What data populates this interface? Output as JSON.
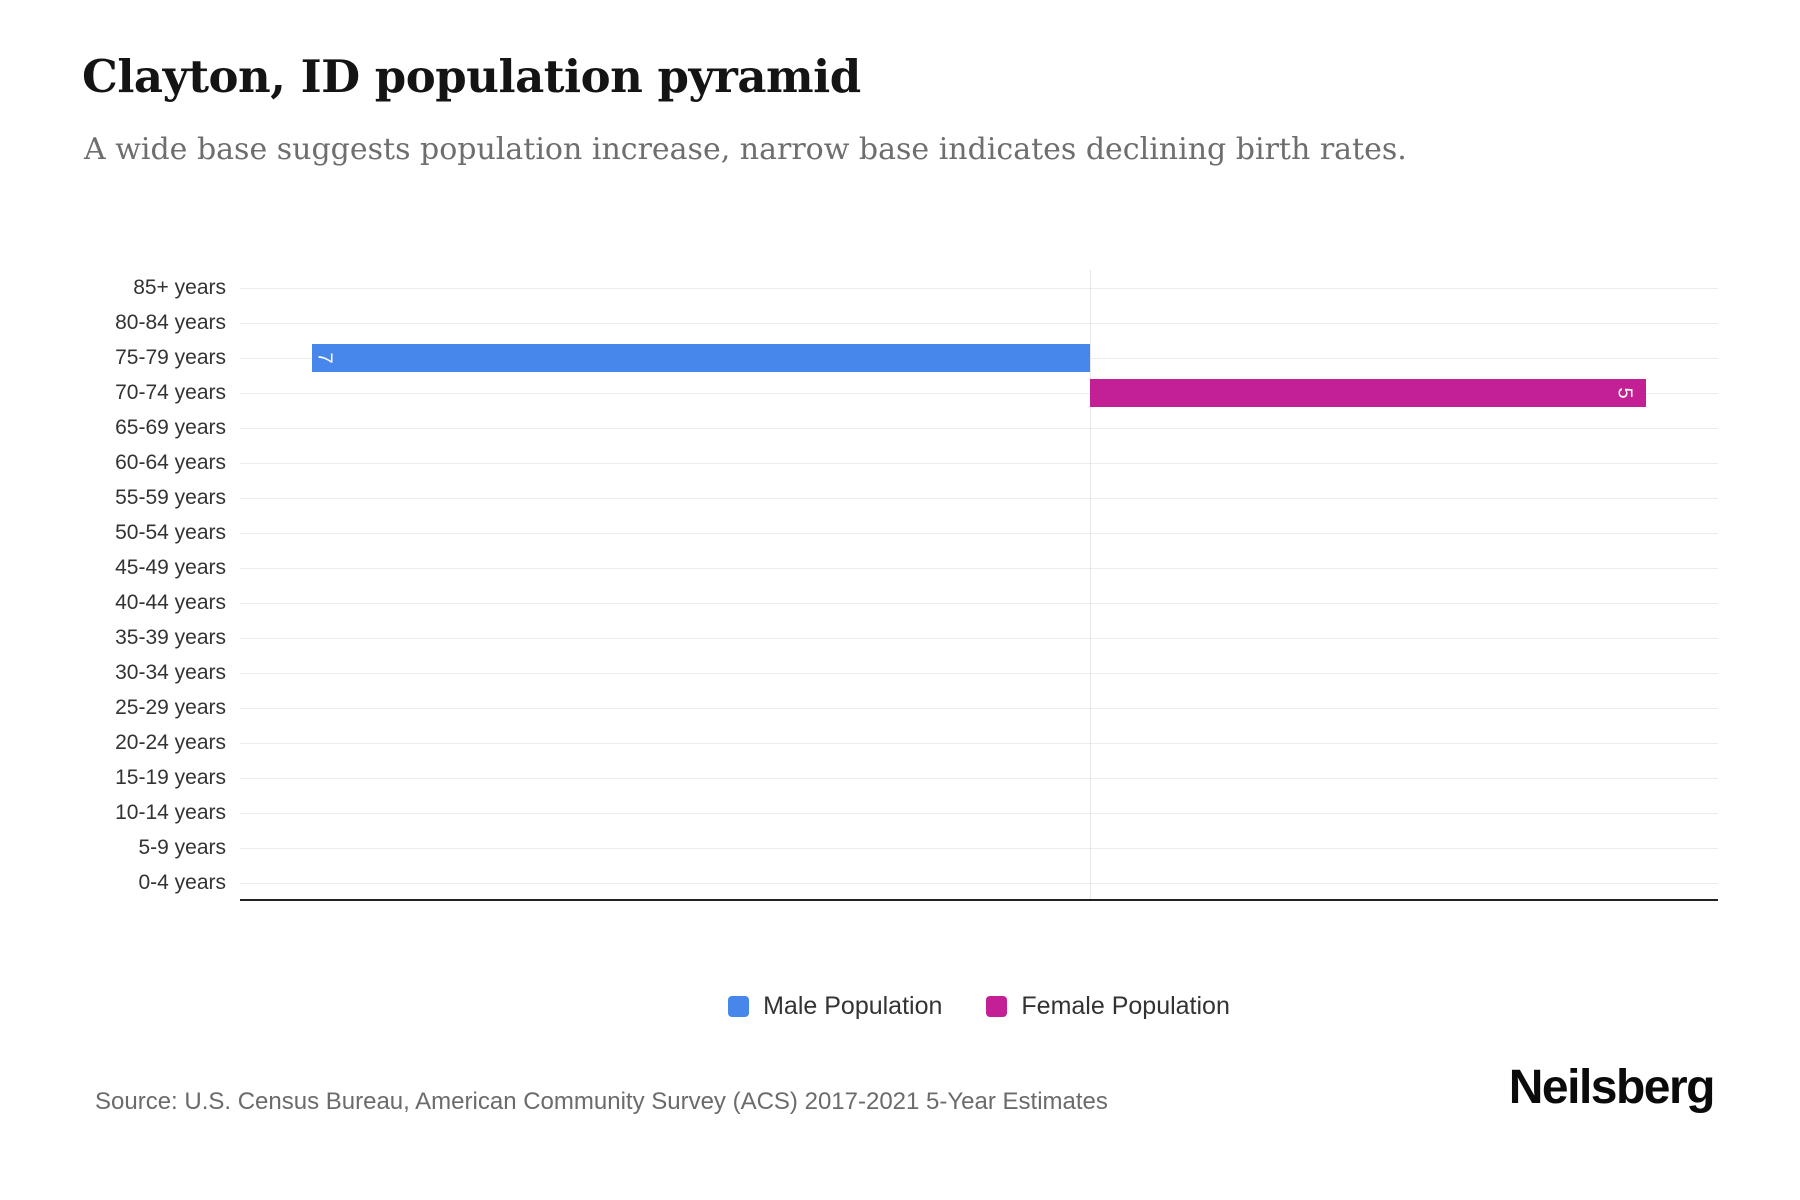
{
  "header": {
    "title": "Clayton, ID population pyramid",
    "subtitle": "A wide base suggests population increase, narrow base indicates declining birth rates."
  },
  "chart_data": {
    "type": "bar",
    "variant": "population-pyramid",
    "title": "Clayton, ID population pyramid",
    "xlabel": "",
    "ylabel": "",
    "grid": true,
    "legend_position": "bottom-center",
    "categories": [
      "85+ years",
      "80-84 years",
      "75-79 years",
      "70-74 years",
      "65-69 years",
      "60-64 years",
      "55-59 years",
      "50-54 years",
      "45-49 years",
      "40-44 years",
      "35-39 years",
      "30-34 years",
      "25-29 years",
      "20-24 years",
      "15-19 years",
      "10-14 years",
      "5-9 years",
      "0-4 years"
    ],
    "series": [
      {
        "name": "Male Population",
        "color": "#4787eb",
        "direction": "left",
        "values": [
          0,
          0,
          7,
          0,
          0,
          0,
          0,
          0,
          0,
          0,
          0,
          0,
          0,
          0,
          0,
          0,
          0,
          0
        ]
      },
      {
        "name": "Female Population",
        "color": "#c32095",
        "direction": "right",
        "values": [
          0,
          0,
          0,
          5,
          0,
          0,
          0,
          0,
          0,
          0,
          0,
          0,
          0,
          0,
          0,
          0,
          0,
          0
        ]
      }
    ],
    "data_labels": [
      {
        "series": "Male Population",
        "category": "75-79 years",
        "text": "7"
      },
      {
        "series": "Female Population",
        "category": "70-74 years",
        "text": "5"
      }
    ]
  },
  "legend": {
    "items": [
      {
        "label": "Male Population",
        "color": "#4787eb"
      },
      {
        "label": "Female Population",
        "color": "#c32095"
      }
    ]
  },
  "footer": {
    "source": "Source: U.S. Census Bureau, American Community Survey (ACS) 2017-2021 5-Year Estimates",
    "brand": "Neilsberg"
  },
  "colors": {
    "male": "#4787eb",
    "female": "#c32095",
    "gridline": "#ececec",
    "axis_line": "#222222",
    "label_text": "#333333"
  }
}
